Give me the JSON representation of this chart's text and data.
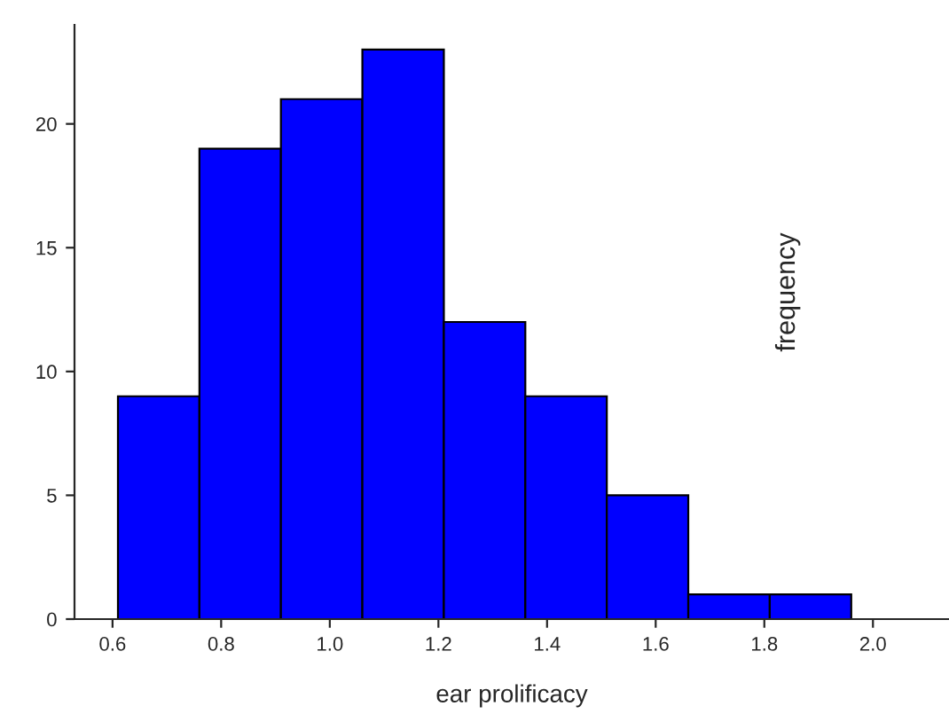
{
  "chart_data": {
    "type": "histogram",
    "xlabel": "ear prolificacy",
    "ylabel": "frequency",
    "bins": [
      0.61,
      0.76,
      0.91,
      1.06,
      1.21,
      1.36,
      1.51,
      1.66,
      1.81,
      1.96
    ],
    "values": [
      9,
      19,
      21,
      23,
      12,
      9,
      5,
      1,
      1
    ],
    "color": "#0000ff",
    "xlim": [
      0.53,
      2.14
    ],
    "xticks": [
      {
        "value": 0.6,
        "label": "0.6"
      },
      {
        "value": 0.8,
        "label": "0.8"
      },
      {
        "value": 1.0,
        "label": "1.0"
      },
      {
        "value": 1.2,
        "label": "1.2"
      },
      {
        "value": 1.4,
        "label": "1.4"
      },
      {
        "value": 1.6,
        "label": "1.6"
      },
      {
        "value": 1.8,
        "label": "1.8"
      },
      {
        "value": 2.0,
        "label": "2.0"
      }
    ],
    "ylim": [
      0,
      24
    ],
    "yticks": [
      0,
      5,
      10,
      15,
      20
    ],
    "grid": false,
    "legend": false
  }
}
